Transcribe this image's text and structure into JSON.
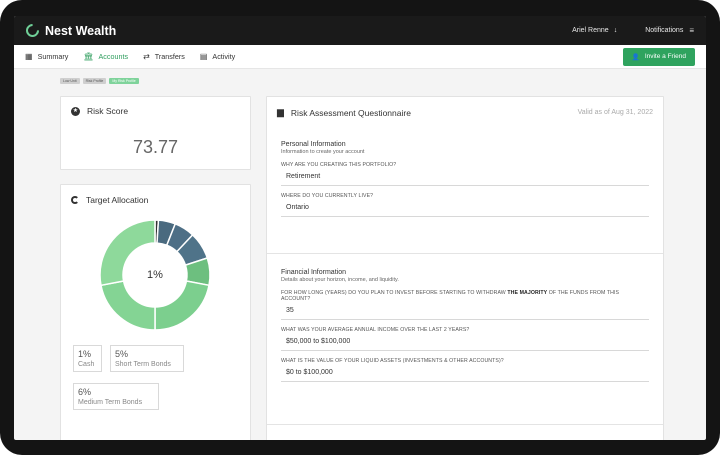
{
  "brand": {
    "name": "Nest Wealth",
    "logo_icon": "nest-logo-icon"
  },
  "header": {
    "user_name": "Ariel Renne",
    "user_arrow": "↓",
    "notifications_label": "Notifications",
    "menu_icon": "≡"
  },
  "nav": {
    "items": [
      {
        "label": "Summary",
        "icon": "▦",
        "active": false
      },
      {
        "label": "Accounts",
        "icon": "🏛",
        "active": true
      },
      {
        "label": "Transfers",
        "icon": "⇄",
        "active": false
      },
      {
        "label": "Activity",
        "icon": "▤",
        "active": false
      }
    ],
    "invite_label": "Invite a Friend"
  },
  "breadcrumbs": [
    "Low Unit",
    "Risk Profile",
    "My Risk Profile"
  ],
  "risk_score": {
    "title": "Risk Score",
    "value": "73.77"
  },
  "target_allocation": {
    "title": "Target Allocation",
    "center_label": "1%",
    "chart_data": {
      "type": "pie",
      "values": [
        1,
        5,
        6,
        8,
        8,
        22,
        22,
        28
      ],
      "colors": [
        "#333333",
        "#4a6a7f",
        "#4e6f86",
        "#4f7389",
        "#6dbf7f",
        "#7ccf8e",
        "#84d494",
        "#8ed99b"
      ]
    },
    "chips": [
      {
        "pct": "1%",
        "label": "Cash"
      },
      {
        "pct": "5%",
        "label": "Short Term Bonds"
      },
      {
        "pct": "6%",
        "label": "Medium Term Bonds"
      }
    ]
  },
  "questionnaire": {
    "title": "Risk Assessment Questionnaire",
    "valid_as_of": "Valid as of Aug 31, 2022",
    "personal": {
      "title": "Personal Information",
      "subtitle": "Information to create your account",
      "q1_label": "WHY ARE YOU CREATING THIS PORTFOLIO?",
      "q1_value": "Retirement",
      "q2_label": "WHERE DO YOU CURRENTLY LIVE?",
      "q2_value": "Ontario"
    },
    "financial": {
      "title": "Financial Information",
      "subtitle": "Details about your horizon, income, and liquidity.",
      "q3_label_a": "FOR HOW LONG (YEARS) DO YOU PLAN TO INVEST BEFORE STARTING TO WITHDRAW ",
      "q3_label_b": "THE MAJORITY",
      "q3_label_c": " OF THE FUNDS FROM THIS ACCOUNT?",
      "q3_value": "35",
      "q4_label": "WHAT WAS YOUR AVERAGE ANNUAL INCOME OVER THE LAST 2 YEARS?",
      "q4_value": "$50,000 to $100,000",
      "q5_label": "WHAT IS THE VALUE OF YOUR LIQUID ASSETS (INVESTMENTS & OTHER ACCOUNTS)?",
      "q5_value": "$0 to $100,000"
    }
  }
}
